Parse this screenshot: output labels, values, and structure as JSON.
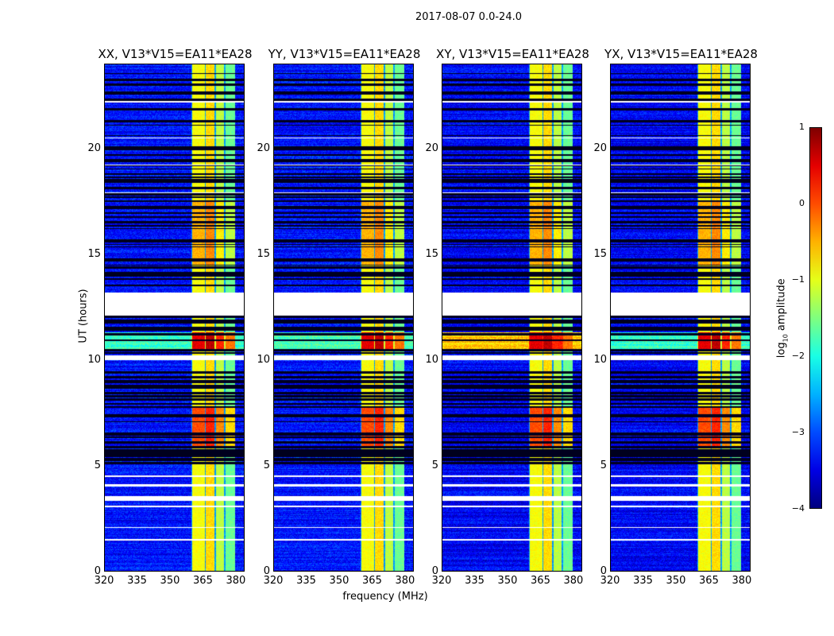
{
  "chart_data": {
    "type": "heatmap",
    "title": "2017-08-07 0.0-24.0",
    "xlabel": "frequency (MHz)",
    "ylabel": "UT (hours)",
    "xlim": [
      320,
      384
    ],
    "ylim": [
      0,
      24
    ],
    "xticks": [
      "320",
      "335",
      "350",
      "365",
      "380"
    ],
    "yticks": [
      "0",
      "5",
      "10",
      "15",
      "20"
    ],
    "colormap": "jet",
    "colorbar": {
      "label": "log10 amplitude",
      "label_main": "log",
      "label_sub": "10",
      "label_rest": " amplitude",
      "range": [
        -4,
        1
      ],
      "ticks": [
        "1",
        "0",
        "−1",
        "−2",
        "−3",
        "−4"
      ]
    },
    "panels": [
      {
        "title": "XX, V13*V15=EA11*EA28",
        "background_level": -3.3,
        "flare_offset": 0.0
      },
      {
        "title": "YY, V13*V15=EA11*EA28",
        "background_level": -3.3,
        "flare_offset": 0.0
      },
      {
        "title": "XY, V13*V15=EA11*EA28",
        "background_level": -3.4,
        "flare_offset": 1.0
      },
      {
        "title": "YX, V13*V15=EA11*EA28",
        "background_level": -3.4,
        "flare_offset": 0.0
      }
    ],
    "rfi_band_columns_mhz": [
      {
        "range": [
          360.4,
          366.0
        ],
        "level": -0.9
      },
      {
        "range": [
          366.6,
          370.5
        ],
        "level": -0.7
      },
      {
        "range": [
          371.1,
          375.0
        ],
        "level": -1.2
      },
      {
        "range": [
          375.6,
          380.0
        ],
        "level": -1.6
      }
    ],
    "no_data_hours": [
      [
        12.1,
        13.2
      ],
      [
        3.3,
        3.55
      ],
      [
        3.0,
        3.1
      ],
      [
        4.0,
        4.1
      ],
      [
        4.45,
        4.52
      ],
      [
        1.45,
        1.52
      ],
      [
        2.02,
        2.08
      ],
      [
        10.0,
        10.2
      ],
      [
        17.9,
        17.95
      ],
      [
        19.2,
        19.25
      ],
      [
        20.5,
        20.55
      ],
      [
        22.2,
        22.25
      ]
    ],
    "enhanced_hours": [
      {
        "range": [
          10.5,
          11.3
        ],
        "delta": 1.4
      },
      {
        "range": [
          5.8,
          7.8
        ],
        "delta": 0.9
      },
      {
        "range": [
          14.5,
          17.5
        ],
        "delta": 0.4
      }
    ]
  }
}
